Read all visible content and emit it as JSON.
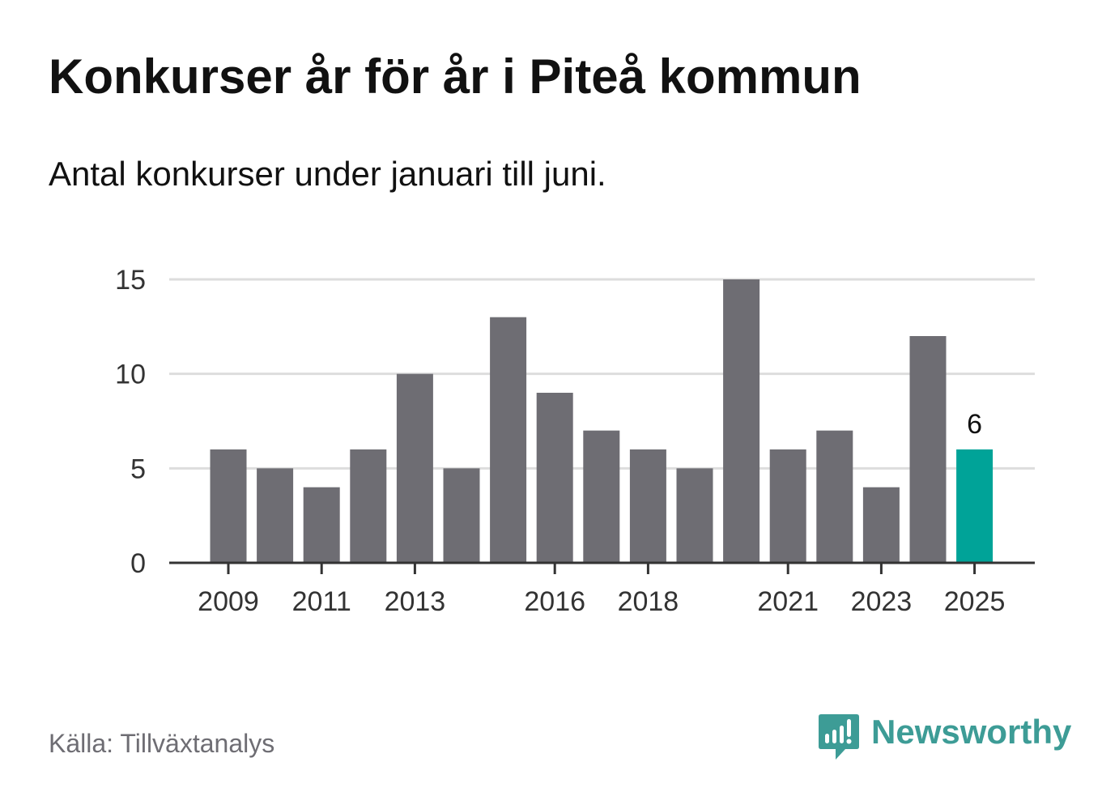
{
  "header": {
    "title": "Konkurser år för år i Piteå kommun",
    "subtitle": "Antal konkurser under januari till juni."
  },
  "footer": {
    "source": "Källa: Tillväxtanalys",
    "brand": "Newsworthy",
    "brand_icon": "bar-chart-speech-bubble-icon"
  },
  "colors": {
    "bar": "#6e6d73",
    "highlight": "#00a398",
    "grid": "#dddddd",
    "axis": "#333333",
    "tick_text": "#333333",
    "brand": "#3d9c96"
  },
  "chart_data": {
    "type": "bar",
    "categories": [
      "2009",
      "2010",
      "2011",
      "2012",
      "2013",
      "2014",
      "2015",
      "2016",
      "2017",
      "2018",
      "2019",
      "2020",
      "2021",
      "2022",
      "2023",
      "2024",
      "2025"
    ],
    "values": [
      6,
      5,
      4,
      6,
      10,
      5,
      13,
      9,
      7,
      6,
      5,
      15,
      6,
      7,
      4,
      12,
      6
    ],
    "x_tick_labels": [
      "2009",
      "2011",
      "2013",
      "2016",
      "2018",
      "2021",
      "2023",
      "2025"
    ],
    "y_ticks": [
      0,
      5,
      10,
      15
    ],
    "ylim": [
      0,
      15
    ],
    "highlight_category": "2025",
    "data_labels": [
      {
        "category": "2025",
        "text": "6"
      }
    ],
    "grid": true,
    "legend": "none",
    "xlabel": "",
    "ylabel": ""
  }
}
